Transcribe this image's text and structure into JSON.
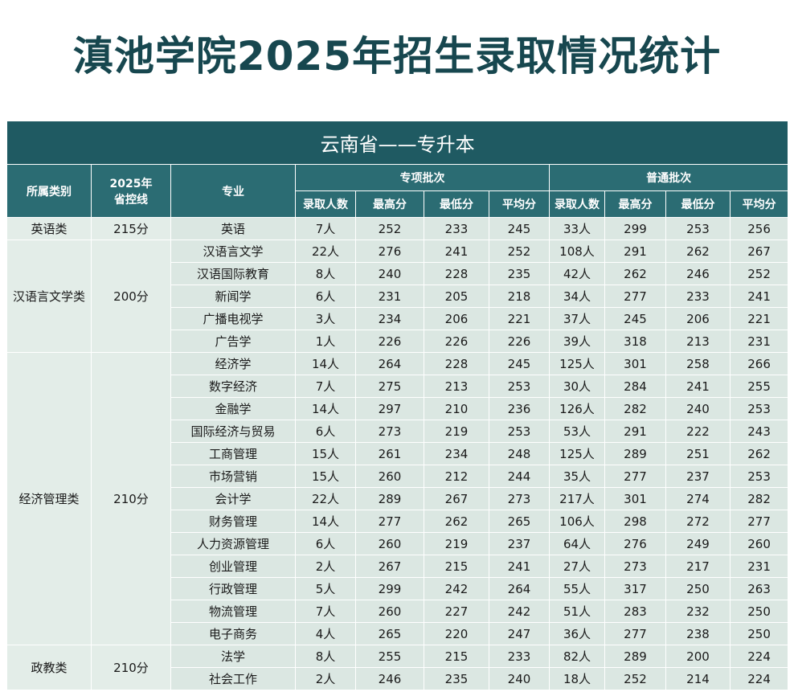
{
  "title": "滇池学院2025年招生录取情况统计",
  "table": {
    "region": "云南省——专升本",
    "columns": {
      "category": "所属类别",
      "control_line": [
        "2025年",
        "省控线"
      ],
      "major": "专业",
      "special": "专项批次",
      "regular": "普通批次",
      "sub": [
        "录取人数",
        "最高分",
        "最低分",
        "平均分"
      ]
    },
    "groups": [
      {
        "category": "英语类",
        "control_line": "215分",
        "rows": [
          [
            "英语",
            "7人",
            252,
            233,
            245,
            "33人",
            299,
            253,
            256
          ]
        ]
      },
      {
        "category": "汉语言文学类",
        "control_line": "200分",
        "rows": [
          [
            "汉语言文学",
            "22人",
            276,
            241,
            252,
            "108人",
            291,
            262,
            267
          ],
          [
            "汉语国际教育",
            "8人",
            240,
            228,
            235,
            "42人",
            262,
            246,
            252
          ],
          [
            "新闻学",
            "6人",
            231,
            205,
            218,
            "34人",
            277,
            233,
            241
          ],
          [
            "广播电视学",
            "3人",
            234,
            206,
            221,
            "37人",
            245,
            206,
            221
          ],
          [
            "广告学",
            "1人",
            226,
            226,
            226,
            "39人",
            318,
            213,
            231
          ]
        ]
      },
      {
        "category": "经济管理类",
        "control_line": "210分",
        "rows": [
          [
            "经济学",
            "14人",
            264,
            228,
            245,
            "125人",
            301,
            258,
            266
          ],
          [
            "数字经济",
            "7人",
            275,
            213,
            253,
            "30人",
            284,
            241,
            255
          ],
          [
            "金融学",
            "14人",
            297,
            210,
            236,
            "126人",
            282,
            240,
            253
          ],
          [
            "国际经济与贸易",
            "6人",
            273,
            219,
            253,
            "53人",
            291,
            222,
            243
          ],
          [
            "工商管理",
            "15人",
            261,
            234,
            248,
            "125人",
            289,
            251,
            262
          ],
          [
            "市场营销",
            "15人",
            260,
            212,
            244,
            "35人",
            277,
            237,
            253
          ],
          [
            "会计学",
            "22人",
            289,
            267,
            273,
            "217人",
            301,
            274,
            282
          ],
          [
            "财务管理",
            "14人",
            277,
            262,
            265,
            "106人",
            298,
            272,
            277
          ],
          [
            "人力资源管理",
            "6人",
            260,
            219,
            237,
            "64人",
            276,
            249,
            260
          ],
          [
            "创业管理",
            "2人",
            267,
            215,
            241,
            "27人",
            273,
            217,
            231
          ],
          [
            "行政管理",
            "5人",
            299,
            242,
            264,
            "55人",
            317,
            250,
            263
          ],
          [
            "物流管理",
            "7人",
            260,
            227,
            242,
            "51人",
            283,
            232,
            250
          ],
          [
            "电子商务",
            "4人",
            265,
            220,
            247,
            "36人",
            277,
            238,
            250
          ]
        ]
      },
      {
        "category": "政教类",
        "control_line": "210分",
        "rows": [
          [
            "法学",
            "8人",
            255,
            215,
            233,
            "82人",
            289,
            200,
            224
          ],
          [
            "社会工作",
            "2人",
            246,
            235,
            240,
            "18人",
            252,
            214,
            224
          ]
        ]
      }
    ]
  }
}
